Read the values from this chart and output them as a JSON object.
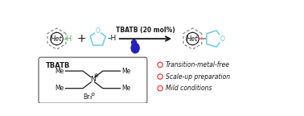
{
  "bg_color": "#ffffff",
  "arrow_color": "#1a1a1a",
  "tbatb_label": "TBATB (20 mol%)",
  "light_color": "#2222bb",
  "thf_color": "#5cc8e8",
  "bond_pink": "#d08080",
  "green_H": "#3db843",
  "box_color": "#666666",
  "red_circle": "#e8322a",
  "bullet_items": [
    "Transition-metal-free",
    "Scale-up preparation",
    "Mild conditions"
  ],
  "tbatb_struct_label": "TBATB",
  "charge_plus": "⊕",
  "charge_minus": "⊖",
  "br3_label": "Br₃"
}
